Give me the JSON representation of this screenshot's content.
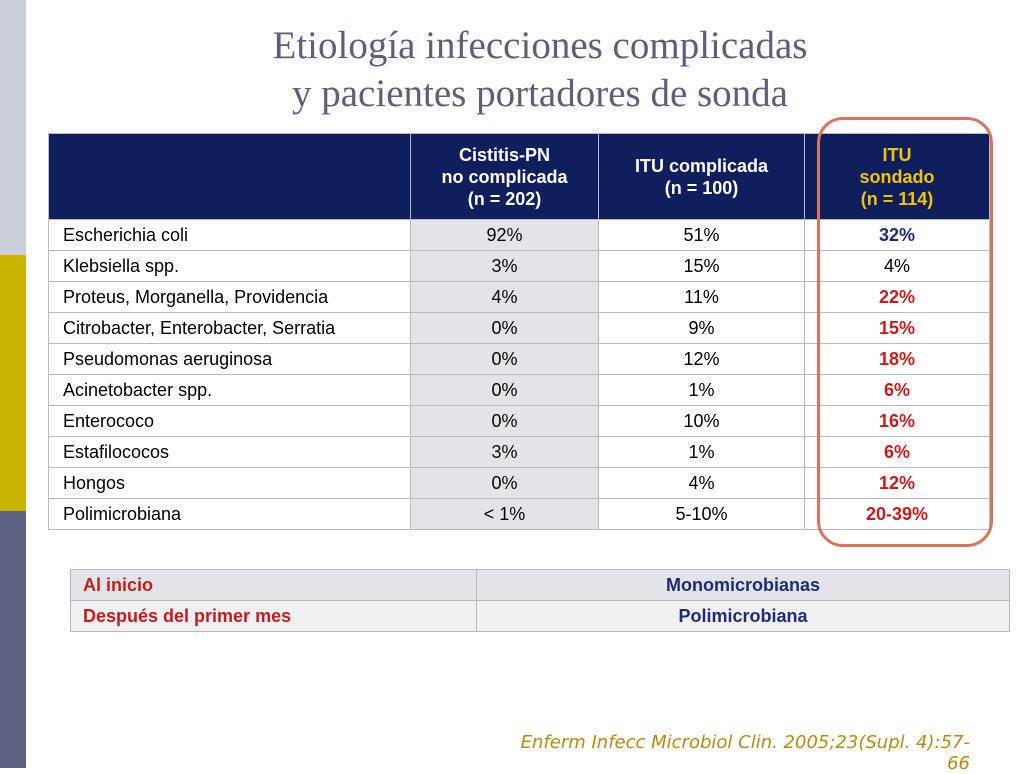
{
  "title": {
    "line1": "Etiología infecciones complicadas",
    "line2": "y pacientes portadores de sonda"
  },
  "table": {
    "headers": [
      "",
      "Cistitis-PN\nno complicada\n(n = 202)",
      "ITU complicada\n(n = 100)",
      "ITU\nsondado\n(n = 114)"
    ],
    "rows": [
      [
        "Escherichia coli",
        "92%",
        "51%",
        "32%"
      ],
      [
        "Klebsiella spp.",
        "3%",
        "15%",
        "4%"
      ],
      [
        "Proteus, Morganella, Providencia",
        "4%",
        "11%",
        "22%"
      ],
      [
        "Citrobacter, Enterobacter, Serratia",
        "0%",
        "9%",
        "15%"
      ],
      [
        "Pseudomonas aeruginosa",
        "0%",
        "12%",
        "18%"
      ],
      [
        "Acinetobacter spp.",
        "0%",
        "1%",
        "6%"
      ],
      [
        "Enterococo",
        "0%",
        "10%",
        "16%"
      ],
      [
        "Estafilococos",
        "3%",
        "1%",
        "6%"
      ],
      [
        "Hongos",
        "0%",
        "4%",
        "12%"
      ],
      [
        "Polimicrobiana",
        "< 1%",
        "5-10%",
        "20-39%"
      ]
    ]
  },
  "summary": {
    "rows": [
      {
        "label": "Al inicio",
        "value": "Monomicrobianas"
      },
      {
        "label": "Después del primer mes",
        "value": "Polimicrobiana"
      }
    ]
  },
  "citation": "Enferm Infecc Microbiol Clin. 2005;23(Supl. 4):57-66",
  "colors": {
    "header_bg": "#0f1f5e",
    "itu_header_text": "#f3c400",
    "highlight_red": "#cc1a1a",
    "highlight_blue": "#1b2d7a",
    "oval": "#d9745a",
    "title": "#5b5f7d",
    "citation": "#b8890c"
  }
}
